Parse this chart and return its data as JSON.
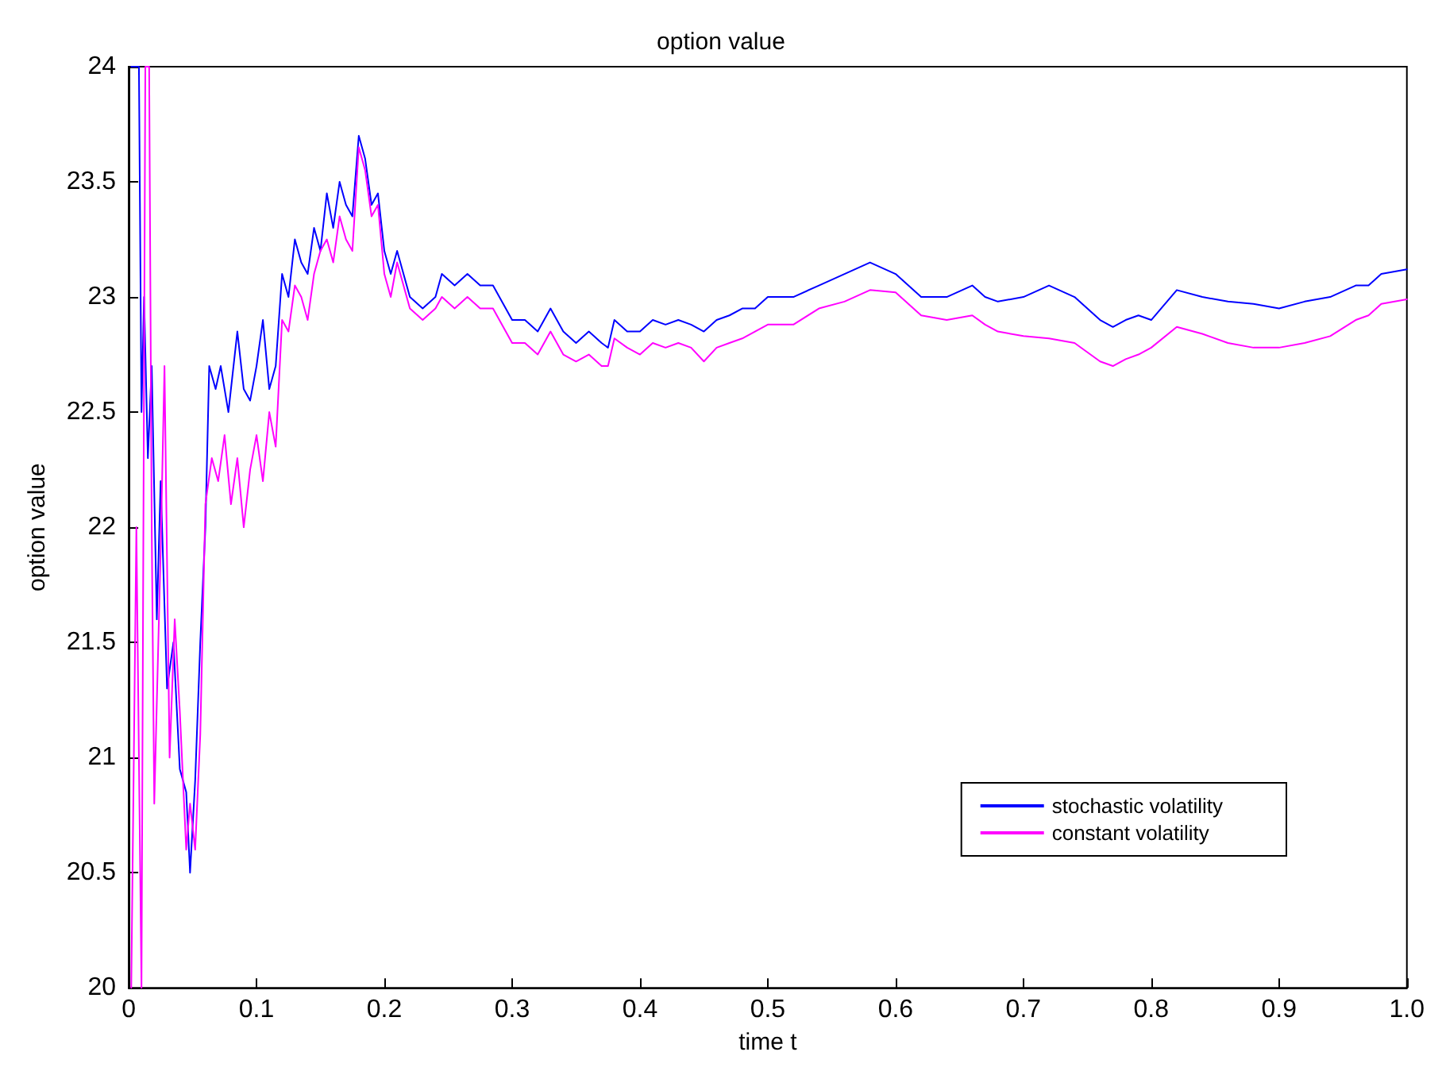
{
  "chart_data": {
    "type": "line",
    "title": "option value",
    "xlabel": "time t",
    "ylabel": "option value",
    "xlim": [
      0,
      1
    ],
    "xticks": [
      0,
      0.1,
      0.2,
      0.3,
      0.4,
      0.5,
      0.6,
      0.7,
      0.8,
      0.9,
      {
        "value": 1,
        "label": "1.0"
      }
    ],
    "ylim": [
      20,
      24
    ],
    "yticks": [
      20,
      20.5,
      21,
      21.5,
      22,
      22.5,
      23,
      23.5,
      24
    ],
    "grid": false,
    "legend": "bottom right",
    "marker": "none",
    "line_style": "solid",
    "series": [
      {
        "name": "stochastic volatility",
        "color": "#0000ff",
        "x": [
          0.002,
          0.008,
          0.01,
          0.012,
          0.015,
          0.018,
          0.022,
          0.025,
          0.03,
          0.035,
          0.04,
          0.045,
          0.048,
          0.052,
          0.056,
          0.06,
          0.063,
          0.068,
          0.072,
          0.078,
          0.085,
          0.09,
          0.095,
          0.1,
          0.105,
          0.11,
          0.115,
          0.12,
          0.125,
          0.13,
          0.135,
          0.14,
          0.145,
          0.15,
          0.155,
          0.16,
          0.165,
          0.17,
          0.175,
          0.18,
          0.185,
          0.19,
          0.195,
          0.2,
          0.205,
          0.21,
          0.215,
          0.22,
          0.23,
          0.24,
          0.245,
          0.255,
          0.265,
          0.275,
          0.285,
          0.295,
          0.3,
          0.31,
          0.32,
          0.33,
          0.34,
          0.35,
          0.36,
          0.37,
          0.375,
          0.38,
          0.39,
          0.4,
          0.41,
          0.42,
          0.43,
          0.44,
          0.45,
          0.46,
          0.47,
          0.48,
          0.49,
          0.5,
          0.52,
          0.54,
          0.56,
          0.58,
          0.6,
          0.62,
          0.64,
          0.66,
          0.67,
          0.68,
          0.7,
          0.72,
          0.74,
          0.76,
          0.77,
          0.78,
          0.79,
          0.8,
          0.82,
          0.84,
          0.86,
          0.88,
          0.9,
          0.92,
          0.94,
          0.96,
          0.97,
          0.98,
          1.0
        ],
        "values": [
          24,
          24,
          22.5,
          23.0,
          22.3,
          22.7,
          21.6,
          22.2,
          21.3,
          21.5,
          20.95,
          20.85,
          20.5,
          20.9,
          21.5,
          22.0,
          22.7,
          22.6,
          22.7,
          22.5,
          22.85,
          22.6,
          22.55,
          22.7,
          22.9,
          22.6,
          22.7,
          23.1,
          23.0,
          23.25,
          23.15,
          23.1,
          23.3,
          23.2,
          23.45,
          23.3,
          23.5,
          23.4,
          23.35,
          23.7,
          23.6,
          23.4,
          23.45,
          23.2,
          23.1,
          23.2,
          23.1,
          23.0,
          22.95,
          23.0,
          23.1,
          23.05,
          23.1,
          23.05,
          23.05,
          22.95,
          22.9,
          22.9,
          22.85,
          22.95,
          22.85,
          22.8,
          22.85,
          22.8,
          22.78,
          22.9,
          22.85,
          22.85,
          22.9,
          22.88,
          22.9,
          22.88,
          22.85,
          22.9,
          22.92,
          22.95,
          22.95,
          23.0,
          23.0,
          23.05,
          23.1,
          23.15,
          23.1,
          23.0,
          23.0,
          23.05,
          23.0,
          22.98,
          23.0,
          23.05,
          23.0,
          22.9,
          22.87,
          22.9,
          22.92,
          22.9,
          23.03,
          23.0,
          22.98,
          22.97,
          22.95,
          22.98,
          23.0,
          23.05,
          23.05,
          23.1,
          23.12
        ]
      },
      {
        "name": "constant volatility",
        "color": "#ff00ff",
        "x": [
          0.002,
          0.006,
          0.01,
          0.013,
          0.016,
          0.018,
          0.02,
          0.025,
          0.028,
          0.032,
          0.036,
          0.04,
          0.045,
          0.048,
          0.052,
          0.056,
          0.06,
          0.065,
          0.07,
          0.075,
          0.08,
          0.085,
          0.09,
          0.095,
          0.1,
          0.105,
          0.11,
          0.115,
          0.12,
          0.125,
          0.13,
          0.135,
          0.14,
          0.145,
          0.15,
          0.155,
          0.16,
          0.165,
          0.17,
          0.175,
          0.18,
          0.185,
          0.19,
          0.195,
          0.2,
          0.205,
          0.21,
          0.215,
          0.22,
          0.23,
          0.24,
          0.245,
          0.255,
          0.265,
          0.275,
          0.285,
          0.295,
          0.3,
          0.31,
          0.32,
          0.33,
          0.34,
          0.35,
          0.36,
          0.37,
          0.375,
          0.38,
          0.39,
          0.4,
          0.41,
          0.42,
          0.43,
          0.44,
          0.45,
          0.46,
          0.47,
          0.48,
          0.49,
          0.5,
          0.52,
          0.54,
          0.56,
          0.58,
          0.6,
          0.62,
          0.64,
          0.66,
          0.67,
          0.68,
          0.7,
          0.72,
          0.74,
          0.76,
          0.77,
          0.78,
          0.79,
          0.8,
          0.82,
          0.84,
          0.86,
          0.88,
          0.9,
          0.92,
          0.94,
          0.96,
          0.97,
          0.98,
          1.0
        ],
        "values": [
          20,
          22.0,
          20.0,
          24,
          24,
          22.0,
          20.8,
          21.9,
          22.7,
          21.0,
          21.6,
          21.2,
          20.6,
          20.8,
          20.6,
          21.1,
          22.1,
          22.3,
          22.2,
          22.4,
          22.1,
          22.3,
          22.0,
          22.25,
          22.4,
          22.2,
          22.5,
          22.35,
          22.9,
          22.85,
          23.05,
          23.0,
          22.9,
          23.1,
          23.2,
          23.25,
          23.15,
          23.35,
          23.25,
          23.2,
          23.65,
          23.55,
          23.35,
          23.4,
          23.1,
          23.0,
          23.15,
          23.05,
          22.95,
          22.9,
          22.95,
          23.0,
          22.95,
          23.0,
          22.95,
          22.95,
          22.85,
          22.8,
          22.8,
          22.75,
          22.85,
          22.75,
          22.72,
          22.75,
          22.7,
          22.7,
          22.82,
          22.78,
          22.75,
          22.8,
          22.78,
          22.8,
          22.78,
          22.72,
          22.78,
          22.8,
          22.82,
          22.85,
          22.88,
          22.88,
          22.95,
          22.98,
          23.03,
          23.02,
          22.92,
          22.9,
          22.92,
          22.88,
          22.85,
          22.83,
          22.82,
          22.8,
          22.72,
          22.7,
          22.73,
          22.75,
          22.78,
          22.87,
          22.84,
          22.8,
          22.78,
          22.78,
          22.8,
          22.83,
          22.9,
          22.92,
          22.97,
          22.99
        ]
      }
    ]
  }
}
